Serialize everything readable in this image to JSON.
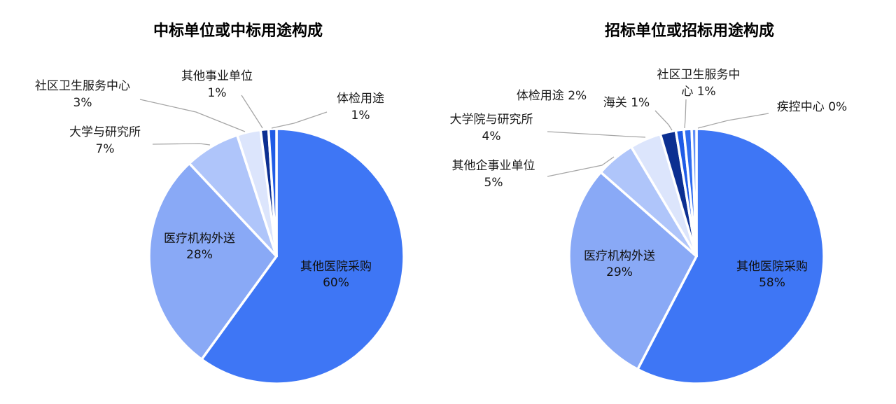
{
  "chart_data": [
    {
      "type": "pie",
      "title": "中标单位或中标用途构成",
      "slices": [
        {
          "label": "其他医院采购",
          "value": 60,
          "value_label": "60%",
          "color": "#3E76F5"
        },
        {
          "label": "医疗机构外送",
          "value": 28,
          "value_label": "28%",
          "color": "#89A9F6"
        },
        {
          "label": "大学与研究所",
          "value": 7,
          "value_label": "7%",
          "color": "#AFC5FA"
        },
        {
          "label": "社区卫生服务中心",
          "value": 3,
          "value_label": "3%",
          "color": "#DCE5FC"
        },
        {
          "label": "其他事业单位",
          "value": 1,
          "value_label": "1%",
          "color": "#0C2F91"
        },
        {
          "label": "体检用途",
          "value": 1,
          "value_label": "1%",
          "color": "#1F5BE6"
        }
      ]
    },
    {
      "type": "pie",
      "title": "招标单位或招标用途构成",
      "slices": [
        {
          "label": "其他医院采购",
          "value": 58,
          "value_label": "58%",
          "color": "#3E76F5"
        },
        {
          "label": "医疗机构外送",
          "value": 29,
          "value_label": "29%",
          "color": "#89A9F6"
        },
        {
          "label": "其他企事业单位",
          "value": 5,
          "value_label": "5%",
          "color": "#AFC5FA"
        },
        {
          "label": "大学院与研究所",
          "value": 4,
          "value_label": "4%",
          "color": "#DCE5FC"
        },
        {
          "label": "体检用途",
          "value": 2,
          "value_label": "2%",
          "color": "#0C2F91"
        },
        {
          "label": "海关",
          "value": 1,
          "value_label": "1%",
          "color": "#1F5BE6"
        },
        {
          "label": "社区卫生服务中心",
          "value": 1,
          "value_label": "1%",
          "color": "#2F6CF0"
        },
        {
          "label": "疾控中心",
          "value": 0,
          "value_label": "0%",
          "color": "#5F8EF7"
        }
      ]
    }
  ]
}
